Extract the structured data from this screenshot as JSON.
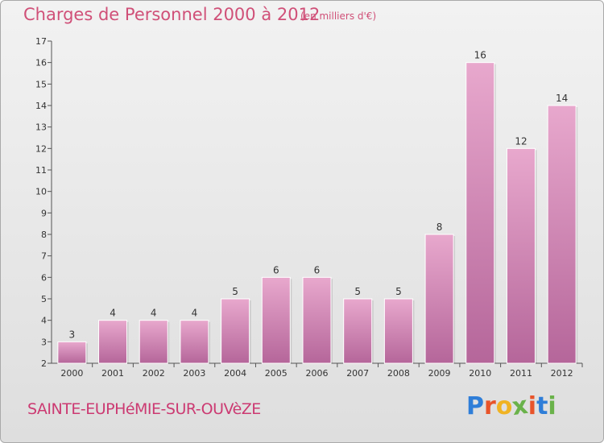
{
  "title": "Charges de Personnel 2000 à 2012",
  "subtitle": "(en milliers d'€)",
  "commune": "SAINTE-EUPHéMIE-SUR-OUVèZE",
  "brand": {
    "letters": [
      "P",
      "r",
      "o",
      "x",
      "i",
      "t",
      "i"
    ],
    "colors": [
      "#2f7ed8",
      "#e8542a",
      "#f0b323",
      "#6ab24a",
      "#e8542a",
      "#2f7ed8",
      "#6ab24a"
    ]
  },
  "colors": {
    "bar_top": "#e8a8cd",
    "bar_bottom": "#b5669a",
    "text": "#d05078"
  },
  "chart_data": {
    "type": "bar",
    "categories": [
      "2000",
      "2001",
      "2002",
      "2003",
      "2004",
      "2005",
      "2006",
      "2007",
      "2008",
      "2009",
      "2010",
      "2011",
      "2012"
    ],
    "values": [
      3,
      4,
      4,
      4,
      5,
      6,
      6,
      5,
      5,
      8,
      16,
      12,
      14
    ],
    "ylim": [
      2,
      17
    ],
    "yticks": [
      2,
      3,
      4,
      5,
      6,
      7,
      8,
      9,
      10,
      11,
      12,
      13,
      14,
      15,
      16,
      17
    ],
    "grid": false,
    "xlabel": "",
    "ylabel": ""
  }
}
